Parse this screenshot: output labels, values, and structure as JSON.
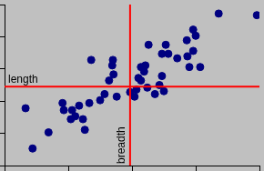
{
  "chart_data": {
    "type": "scatter",
    "x": [
      0.44,
      0.33,
      0.69,
      0.91,
      0.93,
      1.06,
      1.04,
      1.17,
      1.11,
      1.23,
      1.26,
      1.33,
      1.5,
      1.57,
      1.36,
      1.64,
      1.71,
      1.7,
      1.69,
      1.76,
      1.97,
      2.07,
      2.1,
      2.14,
      2.19,
      2.21,
      2.26,
      2.04,
      2.14,
      2.24,
      2.36,
      2.43,
      2.5,
      2.47,
      2.53,
      2.57,
      2.47,
      2.71,
      2.87,
      2.9,
      2.96,
      3.0,
      2.96,
      2.86,
      3.07,
      3.36,
      3.96
    ],
    "values": [
      0.53,
      1.78,
      1.03,
      1.94,
      1.72,
      1.72,
      1.44,
      1.86,
      1.53,
      1.44,
      1.11,
      1.94,
      2.03,
      2.22,
      3.28,
      2.64,
      2.83,
      3.28,
      3.11,
      2.14,
      2.28,
      2.36,
      2.72,
      3.06,
      2.92,
      3.11,
      3.75,
      2.14,
      2.64,
      2.42,
      2.22,
      2.5,
      2.31,
      2.78,
      3.75,
      3.47,
      3.47,
      3.33,
      3.39,
      3.06,
      3.56,
      4.03,
      4.22,
      3.89,
      3.06,
      4.72,
      4.67
    ],
    "color": "#000080",
    "marker": "circle",
    "xlim": [
      0,
      4
    ],
    "xticks": [
      0,
      1,
      2,
      3,
      4
    ],
    "ylim": [
      0,
      5
    ],
    "yticks": [
      0,
      1,
      2,
      3,
      4,
      5
    ],
    "grid": false,
    "tick_labels": false,
    "annotations": [
      {
        "axis": "x",
        "value": 1.97,
        "label": "breadth",
        "color": "#ff0000"
      },
      {
        "axis": "y",
        "value": 2.45,
        "label": "length",
        "color": "#ff0000"
      }
    ]
  }
}
